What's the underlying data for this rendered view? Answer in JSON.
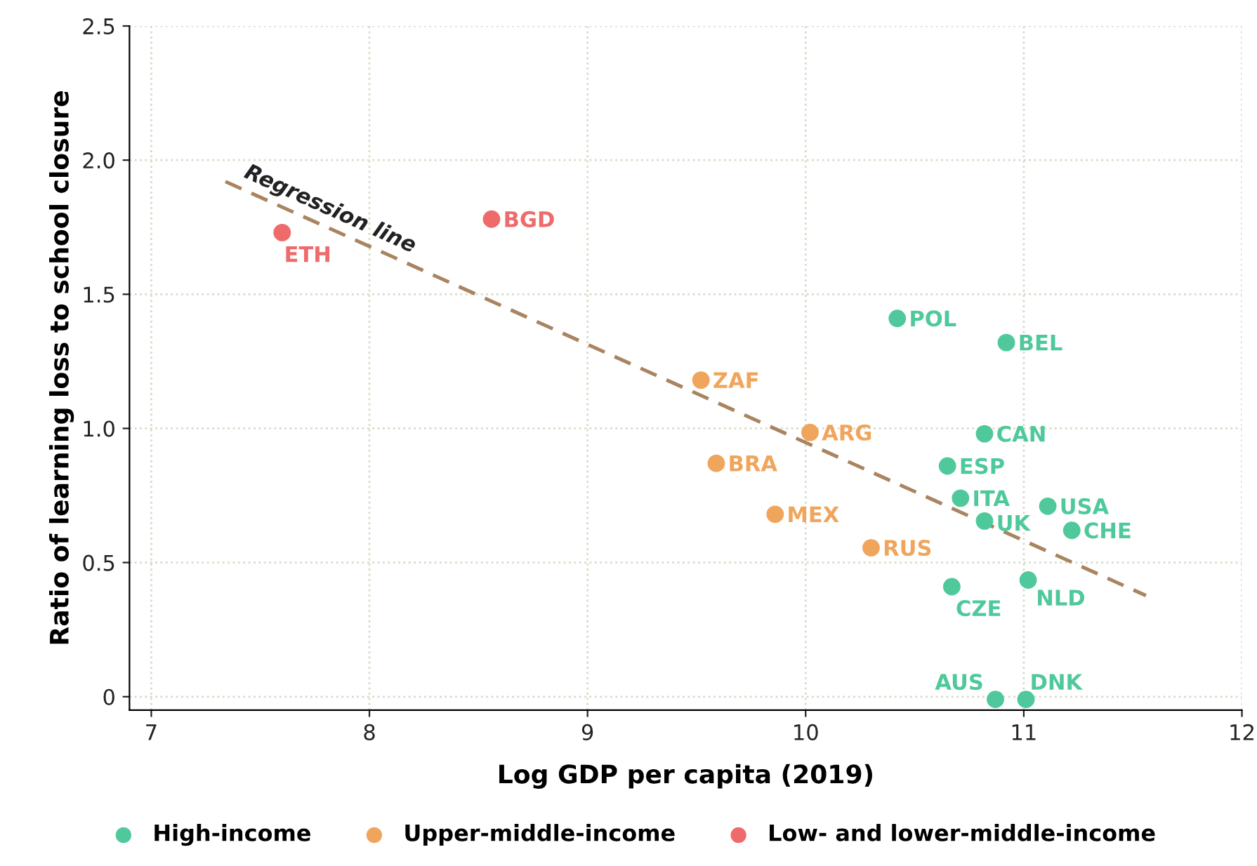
{
  "chart_data": {
    "type": "scatter",
    "xlabel": "Log GDP per capita (2019)",
    "ylabel": "Ratio of learning loss to school closure",
    "xlim": [
      6.9,
      12
    ],
    "ylim": [
      -0.05,
      2.5
    ],
    "xticks": [
      7,
      8,
      9,
      10,
      11,
      12
    ],
    "yticks": [
      0,
      0.5,
      {
        "value": 1.0,
        "label": "1.0"
      },
      {
        "value": 1.5,
        "label": "1.5"
      },
      {
        "value": 2.0,
        "label": "2.0"
      },
      2.5
    ],
    "grid": true,
    "legend": "bottom",
    "marker": "circle",
    "series": [
      {
        "name": "High-income",
        "color": "#4fc99b",
        "x": [
          10.42,
          10.92,
          10.82,
          10.65,
          10.71,
          11.11,
          10.82,
          11.22,
          10.67,
          11.02,
          10.87,
          11.01
        ],
        "values": [
          1.41,
          1.32,
          0.98,
          0.86,
          0.74,
          0.71,
          0.655,
          0.62,
          0.41,
          0.435,
          -0.01,
          -0.01
        ],
        "value_labels": [
          "POL",
          "BEL",
          "CAN",
          "ESP",
          "ITA",
          "USA",
          "UK",
          "CHE",
          "CZE",
          "NLD",
          "AUS",
          "DNK"
        ]
      },
      {
        "name": "Upper-middle-income",
        "color": "#f0a55c",
        "x": [
          9.52,
          10.02,
          9.59,
          9.86,
          10.3
        ],
        "values": [
          1.18,
          0.985,
          0.87,
          0.68,
          0.555
        ],
        "value_labels": [
          "ZAF",
          "ARG",
          "BRA",
          "MEX",
          "RUS"
        ]
      },
      {
        "name": "Low- and lower-middle-income",
        "color": "#ef6b6b",
        "x": [
          7.6,
          8.56
        ],
        "values": [
          1.73,
          1.78
        ],
        "value_labels": [
          "ETH",
          "BGD"
        ]
      },
      {
        "type": "line",
        "line_style": "dashed",
        "marker": "none",
        "color": "#a98460",
        "x": [
          7.34,
          11.56
        ],
        "values": [
          1.92,
          0.377
        ]
      }
    ],
    "annotations": [
      {
        "text": "Regression line",
        "x": 7.8,
        "y": 1.78
      }
    ]
  }
}
